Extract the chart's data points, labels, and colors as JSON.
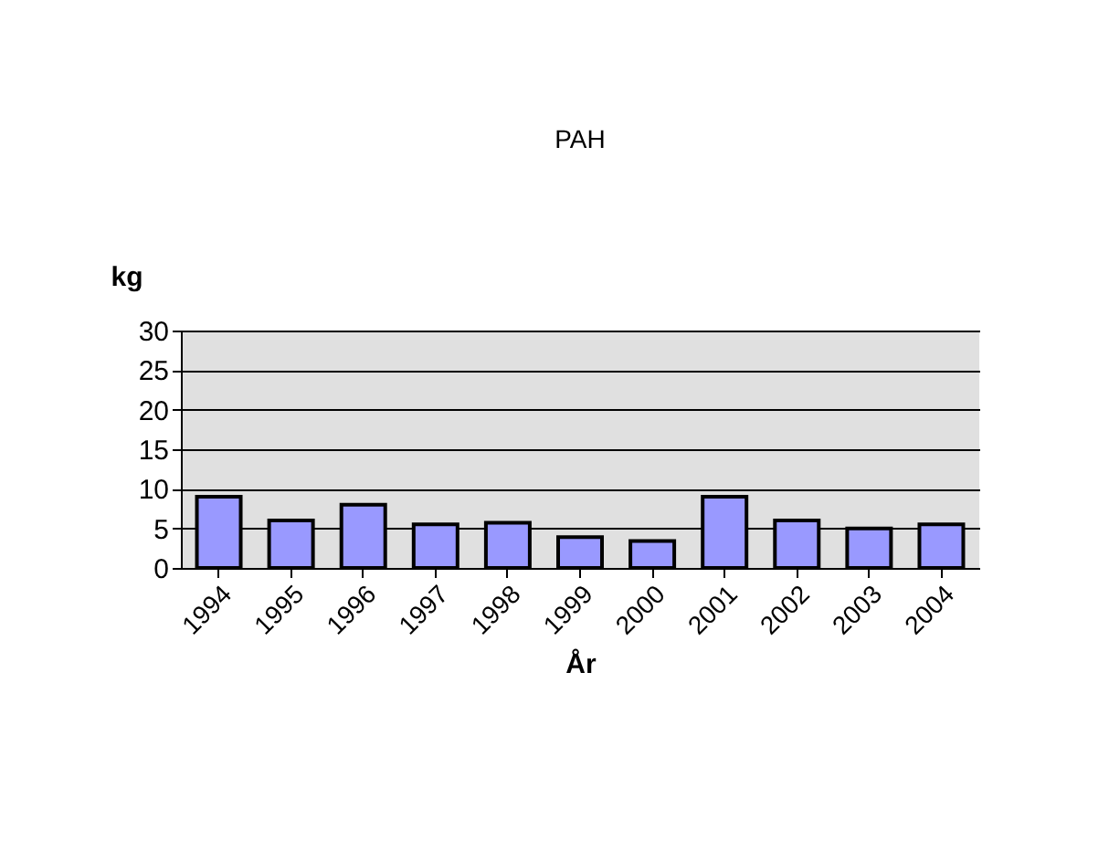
{
  "chart_data": {
    "type": "bar",
    "title": "PAH",
    "xlabel": "År",
    "ylabel": "kg",
    "categories": [
      "1994",
      "1995",
      "1996",
      "1997",
      "1998",
      "1999",
      "2000",
      "2001",
      "2002",
      "2003",
      "2004"
    ],
    "values": [
      9,
      6,
      8,
      5.5,
      5.7,
      3.9,
      3.4,
      9,
      6,
      5,
      5.5
    ],
    "color": "#9999ff",
    "ylim": [
      0,
      30
    ],
    "yticks": [
      0,
      5,
      10,
      15,
      20,
      25,
      30
    ],
    "grid": "y"
  }
}
